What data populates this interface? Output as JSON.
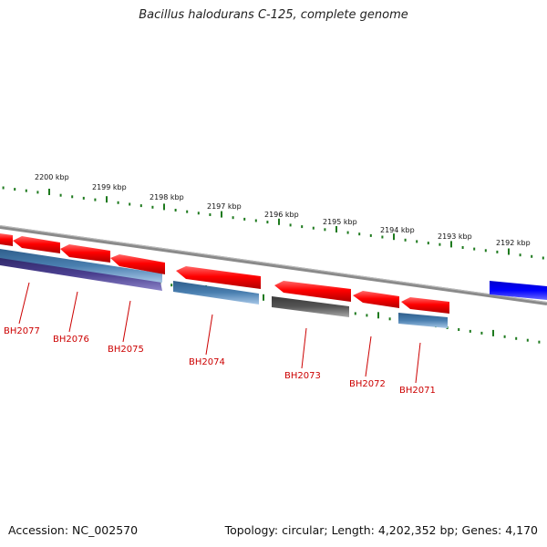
{
  "title": "Bacillus halodurans C-125, complete genome",
  "footer": {
    "accession": "Accession: NC_002570",
    "topology": "Topology: circular; Length: 4,202,352 bp; Genes: 4,170"
  },
  "kbp_labels": [
    "2200 kbp",
    "2199 kbp",
    "2198 kbp",
    "2197 kbp",
    "2196 kbp",
    "2195 kbp",
    "2194 kbp",
    "2193 kbp",
    "2192 kbp"
  ],
  "gene_labels": [
    "BH2077",
    "BH2076",
    "BH2075",
    "BH2074",
    "BH2073",
    "BH2072",
    "BH2071"
  ],
  "colors": {
    "backbone": "#8a8a8a",
    "tick": "#1e7a1e",
    "cds_arrow": "#ff0000",
    "gene_label": "#cc0000",
    "steelblue_bar": "#4a7fb0",
    "dark_blue_bar": "#4a3f8f",
    "gray_bar": "#555555",
    "blue_block": "#0000ff"
  }
}
